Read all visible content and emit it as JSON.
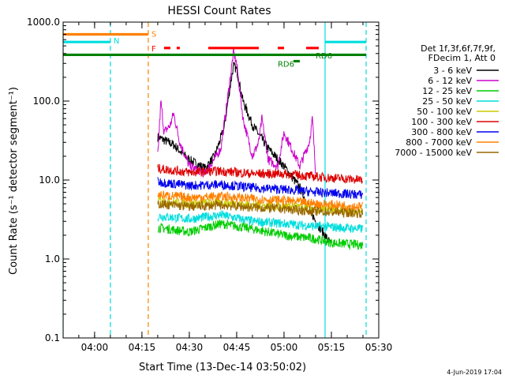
{
  "chart_data": {
    "type": "line",
    "title": "HESSI Count Rates",
    "xlabel": "Start Time (13-Dec-14 03:50:02)",
    "ylabel": "Count Rate (s⁻¹ detector segment⁻¹)",
    "yscale": "log",
    "ylim": [
      0.1,
      1000
    ],
    "xlim": [
      "03:50:02",
      "05:30:00"
    ],
    "x_ticks": [
      "04:00",
      "04:15",
      "04:30",
      "04:45",
      "05:00",
      "05:15",
      "05:30"
    ],
    "y_ticks": [
      "0.1",
      "1.0",
      "10.0",
      "100.0",
      "1000.0"
    ],
    "legend_header": [
      "Det 1f,3f,6f,7f,9f,",
      "FDecim 1, Att 0"
    ],
    "legend_placement": "right",
    "series": [
      {
        "name": "3 - 6 keV",
        "color": "#000000",
        "x": [
          "04:20",
          "04:25",
          "04:30",
          "04:35",
          "04:38",
          "04:41",
          "04:43",
          "04:44",
          "04:45",
          "04:47",
          "04:50",
          "04:55",
          "05:00",
          "05:05",
          "05:10",
          "05:15"
        ],
        "values": [
          35,
          28,
          18,
          14,
          20,
          45,
          160,
          280,
          250,
          100,
          50,
          25,
          15,
          8,
          3,
          1.5
        ]
      },
      {
        "name": "6 - 12 keV",
        "color": "#cc00cc",
        "x": [
          "04:20",
          "04:21",
          "04:22",
          "04:24",
          "04:25",
          "04:27",
          "04:30",
          "04:35",
          "04:40",
          "04:43",
          "04:44",
          "04:45",
          "04:47",
          "04:50",
          "04:52",
          "04:53",
          "04:55",
          "04:58",
          "05:00",
          "05:05",
          "05:08",
          "05:09",
          "05:10"
        ],
        "values": [
          20,
          100,
          40,
          50,
          70,
          30,
          15,
          12,
          25,
          200,
          420,
          300,
          60,
          20,
          30,
          60,
          18,
          15,
          40,
          15,
          30,
          60,
          12
        ]
      },
      {
        "name": "12 - 25 keV",
        "color": "#00cc00",
        "x": [
          "04:20",
          "04:30",
          "04:40",
          "04:45",
          "04:50",
          "05:00",
          "05:10",
          "05:15",
          "05:25"
        ],
        "values": [
          2.5,
          2.2,
          2.8,
          2.6,
          2.4,
          2.0,
          1.8,
          1.6,
          1.5
        ]
      },
      {
        "name": "25 - 50 keV",
        "color": "#00dddd",
        "x": [
          "04:20",
          "04:30",
          "04:40",
          "04:45",
          "04:50",
          "05:00",
          "05:10",
          "05:25"
        ],
        "values": [
          3.5,
          3.2,
          3.6,
          3.3,
          3.0,
          2.8,
          2.6,
          2.4
        ]
      },
      {
        "name": "50 - 100 keV",
        "color": "#cccc00",
        "x": [
          "04:20",
          "04:30",
          "04:40",
          "04:50",
          "05:00",
          "05:10",
          "05:25"
        ],
        "values": [
          5.5,
          5.0,
          5.2,
          4.8,
          4.6,
          4.3,
          4.0
        ]
      },
      {
        "name": "100 - 300 keV",
        "color": "#dd0000",
        "x": [
          "04:20",
          "04:30",
          "04:40",
          "04:50",
          "05:00",
          "05:10",
          "05:25"
        ],
        "values": [
          14,
          12.5,
          13,
          12,
          12,
          11,
          10
        ]
      },
      {
        "name": "300 - 800 keV",
        "color": "#0000ee",
        "x": [
          "04:20",
          "04:30",
          "04:40",
          "04:50",
          "05:00",
          "05:10",
          "05:25"
        ],
        "values": [
          9.5,
          8.5,
          8.8,
          8.0,
          7.6,
          7.0,
          6.5
        ]
      },
      {
        "name": "800 - 7000 keV",
        "color": "#ff8000",
        "x": [
          "04:20",
          "04:30",
          "04:40",
          "04:50",
          "05:00",
          "05:10",
          "05:25"
        ],
        "values": [
          6.5,
          6.0,
          6.2,
          5.8,
          5.5,
          5.0,
          4.6
        ]
      },
      {
        "name": "7000 - 15000 keV",
        "color": "#996600",
        "x": [
          "04:20",
          "04:30",
          "04:40",
          "04:50",
          "05:00",
          "05:10",
          "05:25"
        ],
        "values": [
          5.0,
          4.6,
          4.8,
          4.5,
          4.3,
          4.0,
          3.8
        ]
      }
    ],
    "annotations": [
      {
        "text": "S",
        "color": "#ff8000"
      },
      {
        "text": "N",
        "color": "#00dddd"
      },
      {
        "text": "F",
        "color": "#ff0000"
      },
      {
        "text": "RD6",
        "color": "#008000"
      },
      {
        "text": "RD6",
        "color": "#008000"
      }
    ],
    "flag_bars": [
      {
        "name": "S",
        "color": "#ff8000",
        "level": 700,
        "spans": [
          [
            "03:50:02",
            "04:17"
          ]
        ]
      },
      {
        "name": "N",
        "color": "#00dddd",
        "level": 560,
        "spans": [
          [
            "03:50:02",
            "04:05"
          ],
          [
            "05:13",
            "05:26"
          ]
        ]
      },
      {
        "name": "F",
        "color": "#ff0000",
        "level": 470,
        "spans": [
          [
            "04:22",
            "04:24"
          ],
          [
            "04:26",
            "04:27"
          ],
          [
            "04:36",
            "04:52"
          ],
          [
            "04:58",
            "05:00"
          ],
          [
            "05:07",
            "05:11"
          ]
        ]
      },
      {
        "name": "RD6",
        "color": "#008000",
        "level": 385,
        "spans": [
          [
            "03:50:02",
            "05:26"
          ]
        ]
      },
      {
        "name": "RD6",
        "color": "#008000",
        "level": 320,
        "spans": [
          [
            "05:03",
            "05:05"
          ]
        ]
      }
    ],
    "vertical_lines": [
      {
        "time": "03:50:02",
        "color": "#00dddd",
        "style": "solid"
      },
      {
        "time": "04:05",
        "color": "#00dddd",
        "style": "dashed"
      },
      {
        "time": "04:17",
        "color": "#ff8000",
        "style": "dashed"
      },
      {
        "time": "05:13",
        "color": "#00dddd",
        "style": "solid"
      },
      {
        "time": "05:26",
        "color": "#00dddd",
        "style": "dashed"
      }
    ],
    "grid": false
  },
  "footer": {
    "date": "4-Jun-2019 17:04"
  }
}
